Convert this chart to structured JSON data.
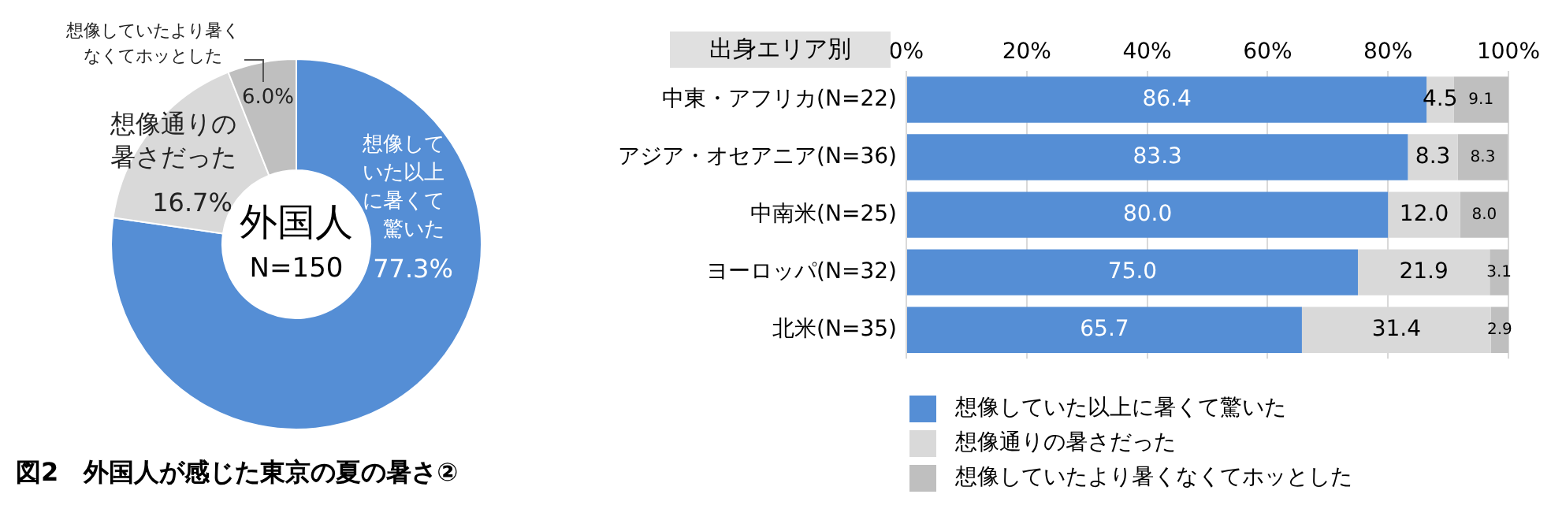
{
  "chart_data": [
    {
      "type": "donut",
      "title": "図2　外国人が感じた東京の夏の暑さ②",
      "categories": [
        "想像していた以上に暑くて驚いた",
        "想像通りの暑さだった",
        "想像していたより暑くなくてホッとした"
      ],
      "values": [
        77.3,
        16.7,
        6.0
      ],
      "colors": [
        "#558ed5",
        "#d9d9d9",
        "#bfbfbf"
      ],
      "value_labels": [
        "77.3%",
        "16.7%",
        "6.0%"
      ],
      "annotations": [
        "外国人",
        "N=150"
      ]
    },
    {
      "type": "bar",
      "orientation": "horizontal",
      "stacked": true,
      "ylabel": "出身エリア別",
      "categories": [
        "中東・アフリカ(N=22)",
        "アジア・オセアニア(N=36)",
        "中南米(N=25)",
        "ヨーロッパ(N=32)",
        "北米(N=35)"
      ],
      "series": [
        {
          "name": "想像していた以上に暑くて驚いた",
          "color": "#558ed5",
          "values": [
            86.4,
            83.3,
            80.0,
            75.0,
            65.7
          ],
          "value_labels": [
            "86.4",
            "83.3",
            "80.0",
            "75.0",
            "65.7"
          ]
        },
        {
          "name": "想像通りの暑さだった",
          "color": "#d9d9d9",
          "values": [
            4.5,
            8.3,
            12.0,
            21.9,
            31.4
          ],
          "value_labels": [
            "4.5",
            "8.3",
            "12.0",
            "21.9",
            "31.4"
          ]
        },
        {
          "name": "想像していたより暑くなくてホッとした",
          "color": "#bfbfbf",
          "values": [
            9.1,
            8.3,
            8.0,
            3.1,
            2.9
          ],
          "value_labels": [
            "9.1",
            "8.3",
            "8.0",
            "3.1",
            "2.9"
          ]
        }
      ],
      "xlim": [
        0,
        100
      ],
      "xticks": [
        {
          "value": 0,
          "label": "0%"
        },
        {
          "value": 20,
          "label": "20%"
        },
        {
          "value": 40,
          "label": "40%"
        },
        {
          "value": 60,
          "label": "60%"
        },
        {
          "value": 80,
          "label": "80%"
        },
        {
          "value": 100,
          "label": "100%"
        }
      ],
      "grid": "x",
      "legend": "bottom"
    }
  ]
}
